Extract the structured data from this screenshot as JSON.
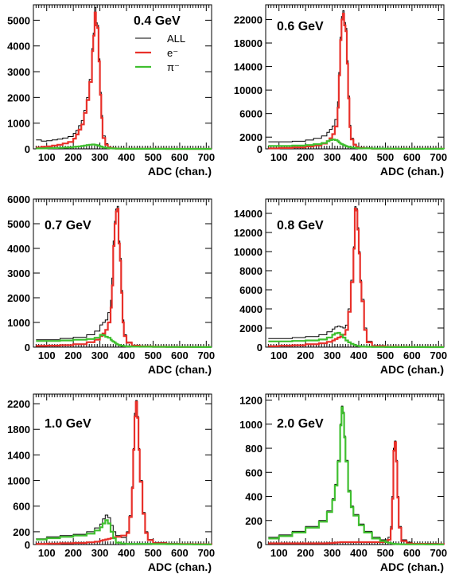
{
  "colors": {
    "all": "#000000",
    "electron": "#e8302a",
    "pion": "#3fbf2f"
  },
  "legend": {
    "all": "ALL",
    "electron": "e⁻",
    "pion": "π⁻"
  },
  "chart_data": [
    {
      "type": "line",
      "label": "0.4 GeV",
      "xlabel": "ADC (chan.)",
      "xlim": [
        50,
        720
      ],
      "ylim": [
        0,
        5600
      ],
      "xticks": [
        100,
        200,
        300,
        400,
        500,
        600,
        700
      ],
      "yticks": [
        0,
        1000,
        2000,
        3000,
        4000,
        5000
      ],
      "legend_shown": true,
      "bins": [
        60,
        80,
        100,
        120,
        140,
        160,
        180,
        200,
        210,
        220,
        230,
        240,
        250,
        260,
        270,
        275,
        280,
        285,
        290,
        295,
        300,
        305,
        310,
        320,
        330,
        340,
        350,
        360,
        380,
        400,
        450,
        500,
        550,
        600,
        650,
        700,
        720
      ],
      "series": [
        {
          "key": "all",
          "values": [
            350,
            300,
            320,
            350,
            380,
            420,
            480,
            600,
            720,
            900,
            1100,
            1500,
            2000,
            2700,
            3900,
            4500,
            5500,
            4900,
            4800,
            3500,
            2200,
            1300,
            500,
            200,
            80,
            40,
            25,
            15,
            10,
            6,
            4,
            3,
            2,
            2,
            2,
            1,
            1
          ]
        },
        {
          "key": "electron",
          "values": [
            50,
            80,
            100,
            130,
            160,
            210,
            270,
            400,
            560,
            750,
            950,
            1400,
            1900,
            2600,
            3800,
            4400,
            5300,
            4800,
            4700,
            3400,
            2100,
            1200,
            420,
            160,
            60,
            30,
            18,
            10,
            6,
            4,
            2,
            2,
            1,
            1,
            1,
            1,
            1
          ]
        },
        {
          "key": "pion",
          "values": [
            20,
            20,
            30,
            35,
            40,
            50,
            60,
            80,
            90,
            100,
            110,
            130,
            150,
            160,
            170,
            170,
            160,
            150,
            140,
            120,
            100,
            80,
            60,
            45,
            30,
            20,
            15,
            10,
            6,
            4,
            2,
            2,
            1,
            1,
            1,
            1,
            1
          ]
        }
      ]
    },
    {
      "type": "line",
      "label": "0.6 GeV",
      "xlabel": "ADC (chan.)",
      "xlim": [
        50,
        720
      ],
      "ylim": [
        0,
        24500
      ],
      "xticks": [
        100,
        200,
        300,
        400,
        500,
        600,
        700
      ],
      "yticks": [
        0,
        2000,
        6000,
        10000,
        14000,
        18000,
        22000
      ],
      "legend_shown": false,
      "bins": [
        60,
        100,
        150,
        200,
        230,
        260,
        280,
        290,
        300,
        310,
        320,
        325,
        330,
        335,
        340,
        345,
        350,
        355,
        360,
        365,
        370,
        380,
        390,
        400,
        420,
        450,
        500,
        550,
        600,
        650,
        700,
        720
      ],
      "series": [
        {
          "key": "all",
          "values": [
            1200,
            1200,
            1300,
            1500,
            1800,
            2200,
            2800,
            3300,
            3900,
            5000,
            8000,
            13000,
            19000,
            22500,
            23500,
            21500,
            20500,
            15000,
            9000,
            4000,
            1800,
            800,
            400,
            250,
            150,
            100,
            70,
            50,
            40,
            30,
            20,
            10
          ]
        },
        {
          "key": "electron",
          "values": [
            100,
            150,
            250,
            400,
            600,
            900,
            1300,
            1800,
            2500,
            3800,
            7000,
            12500,
            18500,
            22000,
            23000,
            21000,
            20000,
            14500,
            8600,
            3700,
            1600,
            700,
            300,
            150,
            80,
            50,
            30,
            20,
            15,
            10,
            8,
            5
          ]
        },
        {
          "key": "pion",
          "values": [
            500,
            500,
            550,
            650,
            800,
            1000,
            1300,
            1500,
            1600,
            1500,
            1300,
            1100,
            900,
            800,
            700,
            600,
            500,
            400,
            350,
            300,
            250,
            200,
            150,
            100,
            80,
            60,
            40,
            30,
            20,
            15,
            10,
            5
          ]
        }
      ]
    },
    {
      "type": "line",
      "label": "0.7 GeV",
      "xlabel": "ADC (chan.)",
      "xlim": [
        50,
        720
      ],
      "ylim": [
        0,
        6000
      ],
      "xticks": [
        100,
        200,
        300,
        400,
        500,
        600,
        700
      ],
      "yticks": [
        0,
        1000,
        2000,
        3000,
        4000,
        5000,
        6000
      ],
      "legend_shown": false,
      "bins": [
        60,
        100,
        150,
        200,
        250,
        280,
        300,
        310,
        320,
        330,
        340,
        345,
        350,
        355,
        360,
        365,
        370,
        375,
        380,
        385,
        390,
        400,
        420,
        450,
        500,
        550,
        600,
        650,
        700,
        720
      ],
      "series": [
        {
          "key": "all",
          "values": [
            300,
            300,
            350,
            400,
            500,
            650,
            900,
            1000,
            1100,
            1400,
            1900,
            2800,
            4300,
            5100,
            5600,
            5700,
            4300,
            3600,
            2300,
            1100,
            500,
            200,
            80,
            40,
            20,
            15,
            10,
            8,
            6,
            4
          ]
        },
        {
          "key": "electron",
          "values": [
            50,
            60,
            80,
            120,
            200,
            300,
            450,
            550,
            700,
            1000,
            1600,
            2500,
            4100,
            5000,
            5500,
            5600,
            4200,
            3500,
            2200,
            1000,
            450,
            180,
            60,
            30,
            15,
            10,
            8,
            6,
            4,
            3
          ]
        },
        {
          "key": "pion",
          "values": [
            250,
            250,
            270,
            300,
            330,
            380,
            500,
            480,
            420,
            380,
            300,
            250,
            220,
            180,
            140,
            110,
            90,
            70,
            60,
            50,
            40,
            30,
            20,
            15,
            10,
            8,
            6,
            4,
            3,
            2
          ]
        }
      ]
    },
    {
      "type": "line",
      "label": "0.8 GeV",
      "xlabel": "ADC (chan.)",
      "xlim": [
        50,
        720
      ],
      "ylim": [
        0,
        15500
      ],
      "xticks": [
        100,
        200,
        300,
        400,
        500,
        600,
        700
      ],
      "yticks": [
        0,
        2000,
        4000,
        6000,
        8000,
        10000,
        12000,
        14000
      ],
      "legend_shown": false,
      "bins": [
        60,
        100,
        150,
        200,
        250,
        280,
        300,
        310,
        320,
        330,
        340,
        350,
        360,
        370,
        380,
        385,
        390,
        395,
        400,
        405,
        410,
        420,
        430,
        450,
        500,
        550,
        600,
        650,
        700,
        720
      ],
      "series": [
        {
          "key": "all",
          "values": [
            900,
            900,
            1000,
            1100,
            1300,
            1600,
            1900,
            2100,
            2200,
            2100,
            2000,
            2300,
            4000,
            7000,
            10500,
            14700,
            14500,
            12500,
            10000,
            7000,
            5000,
            2000,
            600,
            150,
            60,
            40,
            30,
            20,
            15,
            10
          ]
        },
        {
          "key": "electron",
          "values": [
            100,
            150,
            200,
            300,
            400,
            550,
            700,
            850,
            1000,
            1100,
            1300,
            1800,
            3700,
            6800,
            10300,
            14500,
            14300,
            12300,
            9800,
            6800,
            4800,
            1800,
            500,
            100,
            40,
            30,
            20,
            15,
            10,
            5
          ]
        },
        {
          "key": "pion",
          "values": [
            600,
            600,
            650,
            700,
            800,
            1000,
            1300,
            1450,
            1500,
            1300,
            1000,
            700,
            500,
            350,
            250,
            200,
            150,
            130,
            100,
            80,
            60,
            40,
            30,
            20,
            10,
            8,
            6,
            4,
            3,
            2
          ]
        }
      ]
    },
    {
      "type": "line",
      "label": "1.0 GeV",
      "xlabel": "ADC (chan.)",
      "xlim": [
        50,
        720
      ],
      "ylim": [
        0,
        2350
      ],
      "xticks": [
        100,
        200,
        300,
        400,
        500,
        600,
        700
      ],
      "yticks": [
        0,
        200,
        600,
        1000,
        1400,
        1800,
        2200
      ],
      "legend_shown": false,
      "bins": [
        60,
        100,
        150,
        200,
        250,
        280,
        300,
        310,
        320,
        330,
        340,
        350,
        360,
        380,
        400,
        410,
        420,
        425,
        430,
        435,
        440,
        445,
        450,
        460,
        470,
        480,
        500,
        550,
        600,
        650,
        700,
        720
      ],
      "series": [
        {
          "key": "all",
          "values": [
            90,
            120,
            140,
            160,
            200,
            260,
            320,
            400,
            460,
            420,
            300,
            200,
            140,
            110,
            200,
            450,
            900,
            1500,
            2050,
            2250,
            2000,
            1500,
            1000,
            500,
            200,
            80,
            30,
            15,
            10,
            8,
            6,
            4
          ]
        },
        {
          "key": "electron",
          "values": [
            10,
            15,
            20,
            25,
            35,
            45,
            60,
            70,
            80,
            90,
            100,
            110,
            120,
            140,
            180,
            430,
            880,
            1480,
            2000,
            2230,
            1980,
            1480,
            980,
            480,
            180,
            70,
            20,
            10,
            8,
            6,
            4,
            3
          ]
        },
        {
          "key": "pion",
          "values": [
            80,
            100,
            120,
            140,
            170,
            220,
            270,
            330,
            380,
            330,
            200,
            100,
            30,
            15,
            10,
            10,
            10,
            10,
            10,
            10,
            10,
            10,
            10,
            10,
            10,
            10,
            8,
            6,
            4,
            3,
            2,
            2
          ]
        }
      ]
    },
    {
      "type": "line",
      "label": "2.0 GeV",
      "xlabel": "ADC (chan.)",
      "xlim": [
        50,
        720
      ],
      "ylim": [
        0,
        1250
      ],
      "xticks": [
        100,
        200,
        300,
        400,
        500,
        600,
        700
      ],
      "yticks": [
        0,
        200,
        400,
        600,
        800,
        1000,
        1200
      ],
      "legend_shown": false,
      "bins": [
        60,
        100,
        150,
        200,
        250,
        280,
        300,
        310,
        320,
        330,
        335,
        340,
        345,
        350,
        360,
        370,
        380,
        400,
        420,
        450,
        480,
        500,
        510,
        520,
        525,
        530,
        535,
        540,
        545,
        550,
        560,
        580,
        600,
        650,
        700,
        720
      ],
      "series": [
        {
          "key": "all",
          "values": [
            60,
            80,
            110,
            150,
            200,
            280,
            380,
            500,
            700,
            1000,
            1150,
            1100,
            900,
            700,
            450,
            320,
            250,
            170,
            110,
            60,
            40,
            40,
            60,
            150,
            400,
            800,
            860,
            700,
            400,
            150,
            40,
            20,
            10,
            8,
            6,
            4
          ]
        },
        {
          "key": "electron",
          "values": [
            10,
            10,
            10,
            10,
            10,
            12,
            14,
            16,
            18,
            20,
            20,
            20,
            20,
            20,
            20,
            20,
            20,
            20,
            20,
            20,
            20,
            25,
            40,
            130,
            380,
            780,
            850,
            690,
            390,
            140,
            30,
            10,
            6,
            4,
            3,
            2
          ]
        },
        {
          "key": "pion",
          "values": [
            50,
            70,
            100,
            140,
            190,
            270,
            370,
            490,
            690,
            990,
            1140,
            1090,
            890,
            690,
            440,
            310,
            240,
            160,
            100,
            50,
            30,
            20,
            15,
            10,
            8,
            6,
            5,
            4,
            3,
            3,
            2,
            2,
            2,
            1,
            1,
            1
          ]
        }
      ]
    }
  ]
}
